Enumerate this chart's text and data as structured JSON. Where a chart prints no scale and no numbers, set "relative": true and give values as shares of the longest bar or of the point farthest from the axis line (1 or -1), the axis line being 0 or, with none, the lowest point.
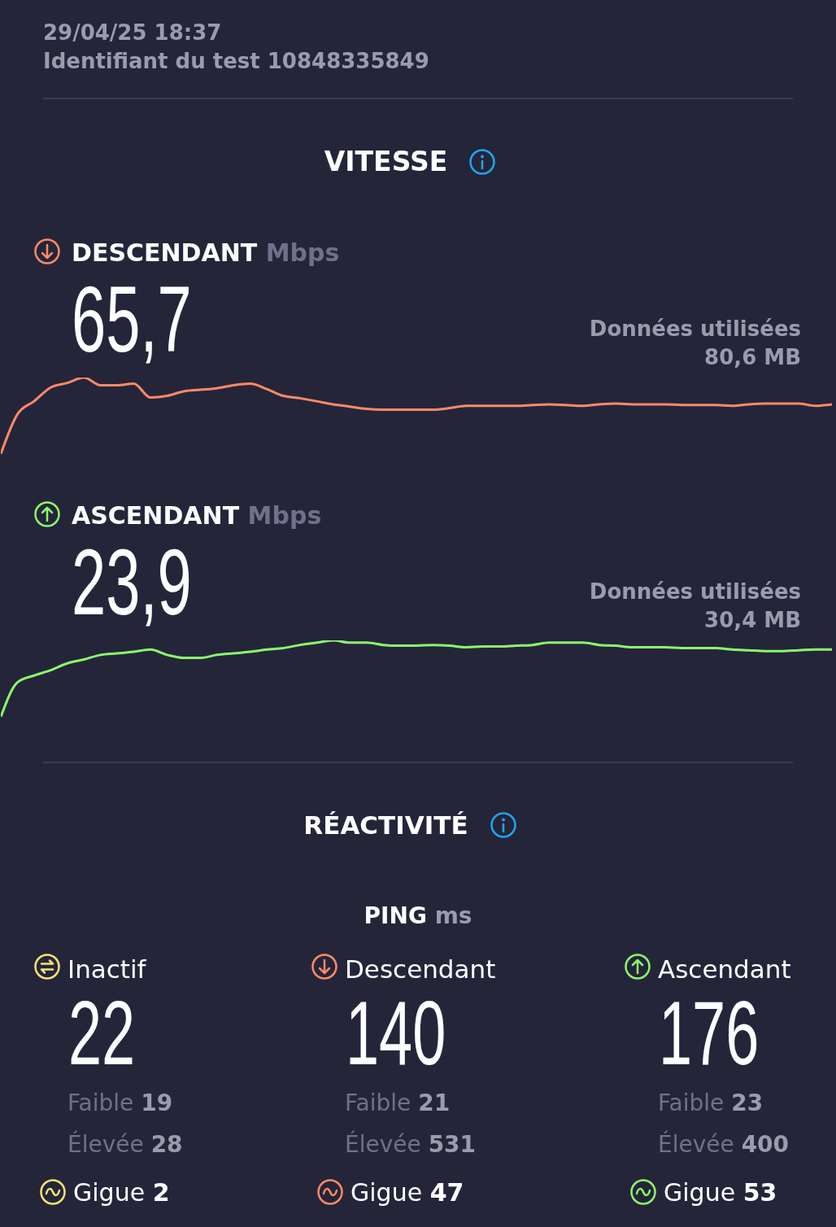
{
  "chart_data": [
    {
      "type": "other",
      "title": "VITESSE",
      "annotations": [
        "29/04/25 18:37",
        "Identifiant du test 10848335849"
      ]
    },
    {
      "type": "line",
      "relative": true,
      "title": "DESCENDANT",
      "ylabel": "Mbps",
      "annotations": [
        "65,7",
        "Données utilisées",
        "80,6 MB"
      ],
      "categories": [
        null,
        null,
        null,
        null,
        null,
        null,
        null,
        null,
        null,
        null,
        null,
        null,
        null,
        null,
        null,
        null,
        null,
        null,
        null,
        null,
        null,
        null,
        null,
        null,
        null,
        null,
        null,
        null,
        null,
        null,
        null,
        null,
        null,
        null,
        null,
        null,
        null,
        null,
        null,
        null,
        null,
        null,
        null,
        null,
        null,
        null,
        null,
        null,
        null,
        null,
        null
      ],
      "series": [
        {
          "color": "#ff8a66",
          "values": [
            0,
            0.52,
            0.69,
            0.87,
            0.93,
            1,
            0.9,
            0.9,
            0.92,
            0.74,
            0.76,
            0.82,
            0.84,
            0.86,
            0.9,
            0.92,
            0.85,
            0.76,
            0.73,
            0.69,
            0.65,
            0.62,
            0.59,
            0.58,
            0.58,
            0.58,
            0.58,
            0.6,
            0.63,
            0.63,
            0.63,
            0.63,
            0.64,
            0.65,
            0.64,
            0.63,
            0.65,
            0.66,
            0.65,
            0.65,
            0.65,
            0.64,
            0.64,
            0.64,
            0.63,
            0.65,
            0.66,
            0.66,
            0.66,
            0.63,
            0.65
          ]
        }
      ]
    },
    {
      "type": "line",
      "relative": true,
      "title": "ASCENDANT",
      "ylabel": "Mbps",
      "annotations": [
        "23,9",
        "Données utilisées",
        "30,4 MB"
      ],
      "categories": [
        null,
        null,
        null,
        null,
        null,
        null,
        null,
        null,
        null,
        null,
        null,
        null,
        null,
        null,
        null,
        null,
        null,
        null,
        null,
        null,
        null,
        null,
        null,
        null,
        null,
        null,
        null,
        null,
        null,
        null,
        null,
        null,
        null,
        null,
        null,
        null,
        null,
        null,
        null,
        null,
        null,
        null,
        null,
        null,
        null,
        null,
        null,
        null,
        null,
        null,
        null
      ],
      "series": [
        {
          "color": "#8cf86c",
          "values": [
            0,
            0.45,
            0.54,
            0.61,
            0.7,
            0.75,
            0.81,
            0.83,
            0.85,
            0.88,
            0.81,
            0.77,
            0.77,
            0.81,
            0.83,
            0.85,
            0.88,
            0.9,
            0.94,
            0.97,
            1,
            0.97,
            0.97,
            0.94,
            0.93,
            0.93,
            0.94,
            0.93,
            0.91,
            0.92,
            0.92,
            0.93,
            0.94,
            0.97,
            0.97,
            0.97,
            0.94,
            0.93,
            0.91,
            0.91,
            0.91,
            0.9,
            0.9,
            0.9,
            0.88,
            0.87,
            0.86,
            0.86,
            0.87,
            0.88,
            0.88
          ]
        }
      ]
    },
    {
      "type": "other",
      "title": "RÉACTIVITÉ",
      "subtitle": "PING ms",
      "categories": [
        "Inactif",
        "Descendant",
        "Ascendant"
      ],
      "colors": [
        "#f5e27a",
        "#ff8a66",
        "#8cf86c"
      ],
      "annotations": [
        "22",
        "Faible 19",
        "Élevée 28",
        "Gigue 2",
        "140",
        "Faible 21",
        "Élevée 531",
        "Gigue 47",
        "176",
        "Faible 23",
        "Élevée 400",
        "Gigue 53"
      ]
    }
  ]
}
